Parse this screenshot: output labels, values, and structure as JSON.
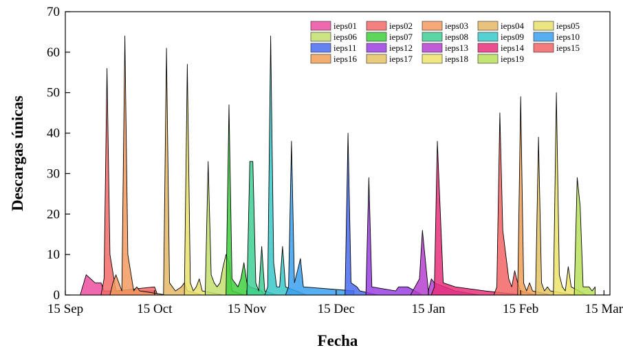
{
  "chart_data": {
    "type": "area",
    "xlabel": "Fecha",
    "ylabel": "Descargas únicas",
    "xlim": [
      "2018-09-15",
      "2019-03-17"
    ],
    "ylim": [
      0,
      70
    ],
    "x_ticks": [
      {
        "date": "2018-09-15",
        "label": "15 Sep"
      },
      {
        "date": "2018-10-15",
        "label": "15 Oct"
      },
      {
        "date": "2018-11-15",
        "label": "15 Nov"
      },
      {
        "date": "2018-12-15",
        "label": "15 Dec"
      },
      {
        "date": "2019-01-15",
        "label": "15 Jan"
      },
      {
        "date": "2019-02-15",
        "label": "15 Feb"
      },
      {
        "date": "2019-03-15",
        "label": "15 Mar"
      }
    ],
    "y_ticks": [
      0,
      10,
      20,
      30,
      40,
      50,
      60,
      70
    ],
    "legend_position": "top-right",
    "series": [
      {
        "name": "ieps01",
        "color": "#ec4fa0",
        "points": [
          [
            "2018-09-20",
            0
          ],
          [
            "2018-09-22",
            5
          ],
          [
            "2018-09-25",
            3
          ],
          [
            "2018-09-27",
            3
          ],
          [
            "2018-09-28",
            1
          ],
          [
            "2018-10-15",
            1
          ]
        ]
      },
      {
        "name": "ieps02",
        "color": "#f26a6a",
        "points": [
          [
            "2018-09-27",
            0
          ],
          [
            "2018-09-28",
            4
          ],
          [
            "2018-09-29",
            56
          ],
          [
            "2018-09-30",
            10
          ],
          [
            "2018-10-02",
            1
          ],
          [
            "2018-10-15",
            2
          ],
          [
            "2018-10-16",
            0
          ]
        ]
      },
      {
        "name": "ieps03",
        "color": "#f39a5e",
        "points": [
          [
            "2018-09-30",
            0
          ],
          [
            "2018-10-01",
            3
          ],
          [
            "2018-10-02",
            5
          ],
          [
            "2018-10-04",
            1
          ],
          [
            "2018-10-05",
            64
          ],
          [
            "2018-10-06",
            10
          ],
          [
            "2018-10-08",
            1
          ],
          [
            "2018-10-09",
            2
          ],
          [
            "2018-10-10",
            1
          ],
          [
            "2018-10-19",
            0
          ]
        ]
      },
      {
        "name": "ieps04",
        "color": "#e5b766",
        "points": [
          [
            "2018-10-18",
            0
          ],
          [
            "2018-10-19",
            61
          ],
          [
            "2018-10-20",
            3
          ],
          [
            "2018-10-22",
            1
          ],
          [
            "2018-10-24",
            2
          ],
          [
            "2018-10-25",
            3
          ],
          [
            "2018-10-26",
            1
          ],
          [
            "2018-10-31",
            0
          ]
        ]
      },
      {
        "name": "ieps05",
        "color": "#e8e16c",
        "points": [
          [
            "2018-10-25",
            0
          ],
          [
            "2018-10-26",
            57
          ],
          [
            "2018-10-27",
            3
          ],
          [
            "2018-10-28",
            1
          ],
          [
            "2018-10-29",
            2
          ],
          [
            "2018-10-30",
            4
          ],
          [
            "2018-10-31",
            1
          ],
          [
            "2018-11-07",
            0
          ]
        ]
      },
      {
        "name": "ieps06",
        "color": "#c3df6e",
        "points": [
          [
            "2018-11-01",
            0
          ],
          [
            "2018-11-02",
            33
          ],
          [
            "2018-11-03",
            5
          ],
          [
            "2018-11-04",
            3
          ],
          [
            "2018-11-05",
            2
          ],
          [
            "2018-11-06",
            3
          ],
          [
            "2018-11-07",
            7
          ],
          [
            "2018-11-08",
            10
          ],
          [
            "2018-11-09",
            8
          ],
          [
            "2018-11-10",
            1
          ],
          [
            "2018-11-14",
            0
          ]
        ]
      },
      {
        "name": "ieps07",
        "color": "#3fd03f",
        "points": [
          [
            "2018-11-08",
            0
          ],
          [
            "2018-11-09",
            47
          ],
          [
            "2018-11-10",
            4
          ],
          [
            "2018-11-12",
            2
          ],
          [
            "2018-11-13",
            4
          ],
          [
            "2018-11-14",
            8
          ],
          [
            "2018-11-15",
            3
          ],
          [
            "2018-11-16",
            2
          ],
          [
            "2018-11-20",
            1
          ],
          [
            "2018-11-21",
            0
          ]
        ]
      },
      {
        "name": "ieps08",
        "color": "#3fcf95",
        "points": [
          [
            "2018-11-15",
            0
          ],
          [
            "2018-11-16",
            33
          ],
          [
            "2018-11-17",
            33
          ],
          [
            "2018-11-18",
            3
          ],
          [
            "2018-11-19",
            1
          ],
          [
            "2018-11-20",
            12
          ],
          [
            "2018-11-21",
            1
          ],
          [
            "2018-11-25",
            0
          ]
        ]
      },
      {
        "name": "ieps09",
        "color": "#38c8c8",
        "points": [
          [
            "2018-11-21",
            0
          ],
          [
            "2018-11-22",
            2
          ],
          [
            "2018-11-23",
            64
          ],
          [
            "2018-11-24",
            8
          ],
          [
            "2018-11-25",
            2
          ],
          [
            "2018-11-26",
            2
          ],
          [
            "2018-11-27",
            12
          ],
          [
            "2018-11-28",
            2
          ],
          [
            "2018-12-05",
            0
          ]
        ]
      },
      {
        "name": "ieps10",
        "color": "#3aa0ef",
        "points": [
          [
            "2018-11-28",
            0
          ],
          [
            "2018-11-29",
            2
          ],
          [
            "2018-11-30",
            38
          ],
          [
            "2018-12-01",
            3
          ],
          [
            "2018-12-02",
            6
          ],
          [
            "2018-12-03",
            9
          ],
          [
            "2018-12-04",
            2
          ],
          [
            "2018-12-21",
            1
          ],
          [
            "2018-12-21",
            0
          ]
        ]
      },
      {
        "name": "ieps11",
        "color": "#4a6cf0",
        "points": [
          [
            "2018-12-18",
            0
          ],
          [
            "2018-12-19",
            40
          ],
          [
            "2018-12-20",
            3
          ],
          [
            "2018-12-22",
            2
          ],
          [
            "2018-12-23",
            1
          ],
          [
            "2018-12-29",
            0
          ]
        ]
      },
      {
        "name": "ieps12",
        "color": "#9a3fe0",
        "points": [
          [
            "2018-12-25",
            0
          ],
          [
            "2018-12-26",
            29
          ],
          [
            "2018-12-27",
            2
          ],
          [
            "2019-01-04",
            1
          ],
          [
            "2019-01-05",
            2
          ],
          [
            "2019-01-08",
            2
          ],
          [
            "2019-01-13",
            0
          ]
        ]
      },
      {
        "name": "ieps13",
        "color": "#b63fd0",
        "points": [
          [
            "2019-01-09",
            0
          ],
          [
            "2019-01-12",
            4
          ],
          [
            "2019-01-13",
            16
          ],
          [
            "2019-01-15",
            1
          ],
          [
            "2019-01-16",
            4
          ],
          [
            "2019-01-17",
            3
          ],
          [
            "2019-01-24",
            1
          ],
          [
            "2019-02-01",
            0
          ]
        ]
      },
      {
        "name": "ieps14",
        "color": "#e8307a",
        "points": [
          [
            "2019-01-16",
            0
          ],
          [
            "2019-01-17",
            2
          ],
          [
            "2019-01-18",
            38
          ],
          [
            "2019-01-20",
            3
          ],
          [
            "2019-01-24",
            2
          ],
          [
            "2019-02-03",
            1
          ],
          [
            "2019-02-16",
            0
          ]
        ]
      },
      {
        "name": "ieps15",
        "color": "#f26565",
        "points": [
          [
            "2019-02-06",
            0
          ],
          [
            "2019-02-07",
            2
          ],
          [
            "2019-02-08",
            45
          ],
          [
            "2019-02-09",
            16
          ],
          [
            "2019-02-10",
            10
          ],
          [
            "2019-02-11",
            4
          ],
          [
            "2019-02-12",
            2
          ],
          [
            "2019-02-13",
            6
          ],
          [
            "2019-02-14",
            3
          ],
          [
            "2019-02-15",
            1
          ],
          [
            "2019-02-20",
            0
          ]
        ]
      },
      {
        "name": "ieps16",
        "color": "#f0a058",
        "points": [
          [
            "2019-02-14",
            0
          ],
          [
            "2019-02-15",
            49
          ],
          [
            "2019-02-16",
            3
          ],
          [
            "2019-02-17",
            1
          ],
          [
            "2019-02-18",
            3
          ],
          [
            "2019-02-19",
            1
          ],
          [
            "2019-02-25",
            0
          ]
        ]
      },
      {
        "name": "ieps17",
        "color": "#e4c264",
        "points": [
          [
            "2019-02-20",
            0
          ],
          [
            "2019-02-21",
            39
          ],
          [
            "2019-02-22",
            3
          ],
          [
            "2019-02-23",
            1
          ],
          [
            "2019-02-24",
            2
          ],
          [
            "2019-02-25",
            1
          ],
          [
            "2019-03-05",
            0
          ]
        ]
      },
      {
        "name": "ieps18",
        "color": "#ece36a",
        "points": [
          [
            "2019-02-26",
            0
          ],
          [
            "2019-02-27",
            50
          ],
          [
            "2019-02-28",
            5
          ],
          [
            "2019-03-01",
            2
          ],
          [
            "2019-03-02",
            1
          ],
          [
            "2019-03-03",
            7
          ],
          [
            "2019-03-04",
            2
          ],
          [
            "2019-03-09",
            0
          ]
        ]
      },
      {
        "name": "ieps19",
        "color": "#b7e05a",
        "points": [
          [
            "2019-03-05",
            0
          ],
          [
            "2019-03-06",
            29
          ],
          [
            "2019-03-07",
            22
          ],
          [
            "2019-03-08",
            2
          ],
          [
            "2019-03-09",
            2
          ],
          [
            "2019-03-10",
            2
          ],
          [
            "2019-03-11",
            1
          ],
          [
            "2019-03-12",
            2
          ],
          [
            "2019-03-12",
            0
          ]
        ]
      }
    ]
  }
}
